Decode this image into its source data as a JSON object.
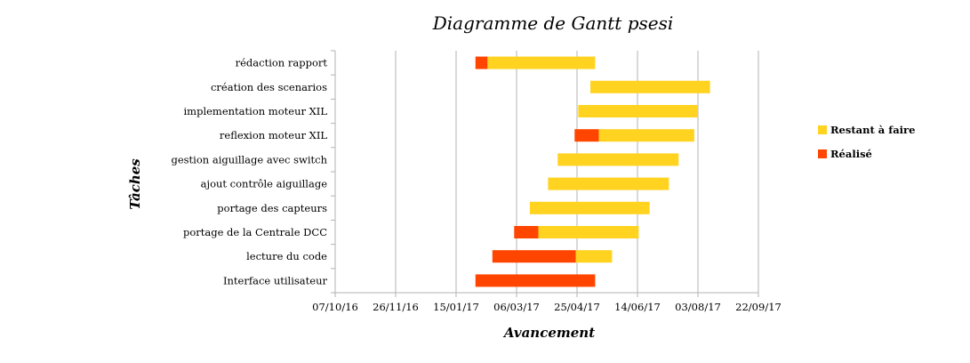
{
  "chart_data": {
    "type": "bar",
    "orientation": "horizontal-stacked-gantt",
    "title": "Diagramme de Gantt psesi",
    "xlabel": "Avancement",
    "ylabel": "Tâches",
    "x_ticks": [
      "07/10/16",
      "26/11/16",
      "15/01/17",
      "06/03/17",
      "25/04/17",
      "14/06/17",
      "03/08/17",
      "22/09/17"
    ],
    "xlim": [
      "2016-10-07",
      "2017-09-22"
    ],
    "grid": true,
    "legend_position": "right",
    "categories": [
      "rédaction rapport",
      "création des scenarios",
      "implementation moteur XIL",
      "reflexion moteur XIL",
      "gestion aiguillage avec switch",
      "ajout contrôle aiguillage",
      "portage des capteurs",
      "portage de la Centrale DCC",
      "lecture du code",
      "Interface utilisateur"
    ],
    "series": [
      {
        "name": "Réalisé",
        "color": "#ff4500",
        "ranges": [
          [
            "2017-01-31",
            "2017-02-10"
          ],
          null,
          null,
          [
            "2017-04-23",
            "2017-05-13"
          ],
          null,
          null,
          null,
          [
            "2017-03-04",
            "2017-03-24"
          ],
          [
            "2017-02-14",
            "2017-04-24"
          ],
          [
            "2017-01-31",
            "2017-05-10"
          ]
        ]
      },
      {
        "name": "Restant à faire",
        "color": "#ffd320",
        "ranges": [
          [
            "2017-02-10",
            "2017-05-10"
          ],
          [
            "2017-05-06",
            "2017-08-13"
          ],
          [
            "2017-04-26",
            "2017-08-03"
          ],
          [
            "2017-05-13",
            "2017-07-31"
          ],
          [
            "2017-04-09",
            "2017-07-18"
          ],
          [
            "2017-04-01",
            "2017-07-10"
          ],
          [
            "2017-03-17",
            "2017-06-24"
          ],
          [
            "2017-03-24",
            "2017-06-15"
          ],
          [
            "2017-04-24",
            "2017-05-24"
          ],
          null
        ]
      }
    ],
    "legend": [
      {
        "label": "Restant à faire",
        "color": "#ffd320"
      },
      {
        "label": "Réalisé",
        "color": "#ff4500"
      }
    ]
  }
}
